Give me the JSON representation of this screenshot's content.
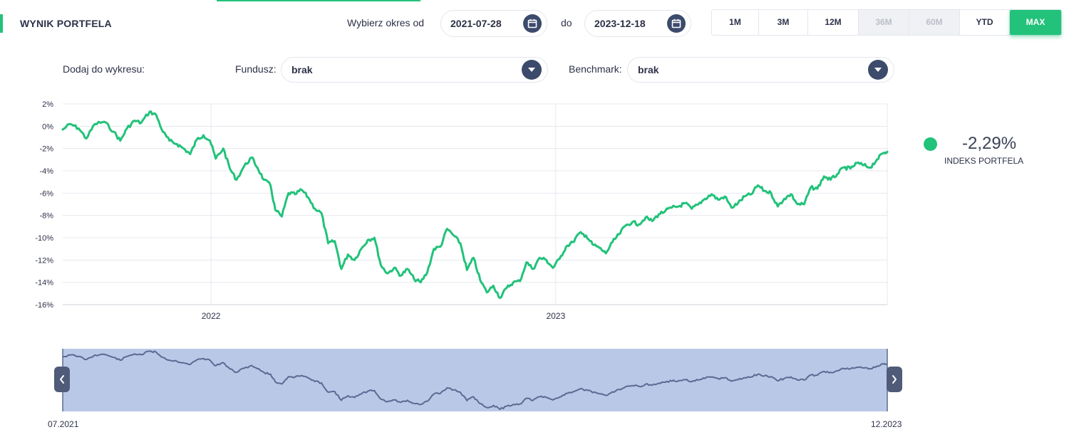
{
  "header": {
    "title": "WYNIK PORTFELA",
    "period_from_label": "Wybierz okres od",
    "date_from": "2021-07-28",
    "to_label": "do",
    "date_to": "2023-12-18",
    "periods": [
      {
        "label": "1M",
        "state": "normal"
      },
      {
        "label": "3M",
        "state": "normal"
      },
      {
        "label": "12M",
        "state": "normal"
      },
      {
        "label": "36M",
        "state": "disabled"
      },
      {
        "label": "60M",
        "state": "disabled"
      },
      {
        "label": "YTD",
        "state": "normal"
      },
      {
        "label": "MAX",
        "state": "active"
      }
    ]
  },
  "filters": {
    "add_label": "Dodaj do wykresu:",
    "fund_label": "Fundusz:",
    "fund_value": "brak",
    "benchmark_label": "Benchmark:",
    "benchmark_value": "brak"
  },
  "legend": {
    "value": "-2,29%",
    "label": "INDEKS PORTFELA",
    "color": "#22c27a"
  },
  "navigator": {
    "start_label": "07.2021",
    "end_label": "12.2023",
    "fill_color": "#b9c8e6",
    "line_color": "#5a6a93"
  },
  "chart_data": {
    "type": "line",
    "title": "",
    "xlabel": "",
    "ylabel": "",
    "ylim": [
      -16,
      2
    ],
    "y_ticks": [
      "2%",
      "0%",
      "-2%",
      "-4%",
      "-6%",
      "-8%",
      "-10%",
      "-12%",
      "-14%",
      "-16%"
    ],
    "x_ticks": [
      {
        "date": "2022-01-01",
        "label": "2022"
      },
      {
        "date": "2023-01-01",
        "label": "2023"
      }
    ],
    "xlim": [
      "2021-07-28",
      "2023-12-18"
    ],
    "grid": true,
    "series": [
      {
        "name": "INDEKS PORTFELA",
        "color": "#22c27a",
        "points": [
          [
            "2021-07-28",
            -0.3
          ],
          [
            "2021-08-05",
            0.2
          ],
          [
            "2021-08-14",
            -0.2
          ],
          [
            "2021-08-22",
            -1.1
          ],
          [
            "2021-08-31",
            0.2
          ],
          [
            "2021-09-10",
            0.4
          ],
          [
            "2021-09-20",
            -0.5
          ],
          [
            "2021-09-27",
            -1.3
          ],
          [
            "2021-10-04",
            -0.2
          ],
          [
            "2021-10-12",
            0.5
          ],
          [
            "2021-10-19",
            0.3
          ],
          [
            "2021-10-28",
            1.3
          ],
          [
            "2021-11-04",
            1.0
          ],
          [
            "2021-11-11",
            -0.5
          ],
          [
            "2021-11-18",
            -1.3
          ],
          [
            "2021-11-26",
            -1.6
          ],
          [
            "2021-12-03",
            -2.0
          ],
          [
            "2021-12-10",
            -2.5
          ],
          [
            "2021-12-17",
            -1.2
          ],
          [
            "2021-12-24",
            -0.8
          ],
          [
            "2021-12-31",
            -1.3
          ],
          [
            "2022-01-06",
            -2.9
          ],
          [
            "2022-01-14",
            -2.0
          ],
          [
            "2022-01-21",
            -3.8
          ],
          [
            "2022-01-28",
            -4.8
          ],
          [
            "2022-02-05",
            -3.6
          ],
          [
            "2022-02-13",
            -2.8
          ],
          [
            "2022-02-19",
            -3.7
          ],
          [
            "2022-02-26",
            -4.8
          ],
          [
            "2022-03-05",
            -5.3
          ],
          [
            "2022-03-10",
            -7.5
          ],
          [
            "2022-03-17",
            -8.1
          ],
          [
            "2022-03-24",
            -6.0
          ],
          [
            "2022-03-31",
            -6.1
          ],
          [
            "2022-04-07",
            -5.7
          ],
          [
            "2022-04-14",
            -6.4
          ],
          [
            "2022-04-21",
            -7.4
          ],
          [
            "2022-04-28",
            -7.8
          ],
          [
            "2022-05-05",
            -10.5
          ],
          [
            "2022-05-12",
            -10.3
          ],
          [
            "2022-05-19",
            -12.8
          ],
          [
            "2022-05-26",
            -11.5
          ],
          [
            "2022-06-02",
            -12.0
          ],
          [
            "2022-06-09",
            -11.0
          ],
          [
            "2022-06-16",
            -10.2
          ],
          [
            "2022-06-23",
            -10.0
          ],
          [
            "2022-06-30",
            -12.5
          ],
          [
            "2022-07-07",
            -13.2
          ],
          [
            "2022-07-14",
            -12.7
          ],
          [
            "2022-07-21",
            -13.4
          ],
          [
            "2022-07-28",
            -12.8
          ],
          [
            "2022-08-04",
            -13.7
          ],
          [
            "2022-08-11",
            -14.0
          ],
          [
            "2022-08-18",
            -13.1
          ],
          [
            "2022-08-25",
            -11.0
          ],
          [
            "2022-09-01",
            -10.8
          ],
          [
            "2022-09-08",
            -9.2
          ],
          [
            "2022-09-15",
            -9.8
          ],
          [
            "2022-09-22",
            -10.5
          ],
          [
            "2022-09-29",
            -12.9
          ],
          [
            "2022-10-06",
            -11.8
          ],
          [
            "2022-10-13",
            -13.8
          ],
          [
            "2022-10-20",
            -14.9
          ],
          [
            "2022-10-27",
            -14.3
          ],
          [
            "2022-11-03",
            -15.4
          ],
          [
            "2022-11-10",
            -14.5
          ],
          [
            "2022-11-17",
            -14.0
          ],
          [
            "2022-11-24",
            -13.9
          ],
          [
            "2022-12-01",
            -12.2
          ],
          [
            "2022-12-08",
            -12.8
          ],
          [
            "2022-12-15",
            -11.8
          ],
          [
            "2022-12-22",
            -12.0
          ],
          [
            "2022-12-29",
            -12.7
          ],
          [
            "2023-01-05",
            -11.9
          ],
          [
            "2023-01-12",
            -10.8
          ],
          [
            "2023-01-19",
            -10.4
          ],
          [
            "2023-01-26",
            -9.6
          ],
          [
            "2023-02-02",
            -9.8
          ],
          [
            "2023-02-09",
            -10.6
          ],
          [
            "2023-02-16",
            -10.9
          ],
          [
            "2023-02-23",
            -11.4
          ],
          [
            "2023-03-02",
            -10.4
          ],
          [
            "2023-03-09",
            -9.7
          ],
          [
            "2023-03-16",
            -8.9
          ],
          [
            "2023-03-23",
            -8.6
          ],
          [
            "2023-03-30",
            -8.8
          ],
          [
            "2023-04-06",
            -8.2
          ],
          [
            "2023-04-13",
            -8.5
          ],
          [
            "2023-04-20",
            -7.9
          ],
          [
            "2023-04-27",
            -7.6
          ],
          [
            "2023-05-04",
            -7.3
          ],
          [
            "2023-05-11",
            -7.2
          ],
          [
            "2023-05-18",
            -6.9
          ],
          [
            "2023-05-25",
            -7.4
          ],
          [
            "2023-06-01",
            -7.0
          ],
          [
            "2023-06-08",
            -6.5
          ],
          [
            "2023-06-15",
            -6.1
          ],
          [
            "2023-06-22",
            -6.6
          ],
          [
            "2023-06-29",
            -6.3
          ],
          [
            "2023-07-06",
            -7.3
          ],
          [
            "2023-07-13",
            -6.9
          ],
          [
            "2023-07-20",
            -6.3
          ],
          [
            "2023-07-27",
            -6.1
          ],
          [
            "2023-08-03",
            -5.3
          ],
          [
            "2023-08-10",
            -5.8
          ],
          [
            "2023-08-17",
            -6.0
          ],
          [
            "2023-08-24",
            -7.2
          ],
          [
            "2023-08-31",
            -6.5
          ],
          [
            "2023-09-07",
            -6.1
          ],
          [
            "2023-09-14",
            -7.0
          ],
          [
            "2023-09-21",
            -7.0
          ],
          [
            "2023-09-28",
            -5.5
          ],
          [
            "2023-10-05",
            -5.6
          ],
          [
            "2023-10-12",
            -4.5
          ],
          [
            "2023-10-19",
            -4.8
          ],
          [
            "2023-10-26",
            -4.3
          ],
          [
            "2023-11-02",
            -3.7
          ],
          [
            "2023-11-09",
            -3.8
          ],
          [
            "2023-11-16",
            -3.3
          ],
          [
            "2023-11-23",
            -3.5
          ],
          [
            "2023-11-30",
            -3.7
          ],
          [
            "2023-12-07",
            -3.0
          ],
          [
            "2023-12-14",
            -2.4
          ],
          [
            "2023-12-18",
            -2.29
          ]
        ]
      }
    ]
  }
}
